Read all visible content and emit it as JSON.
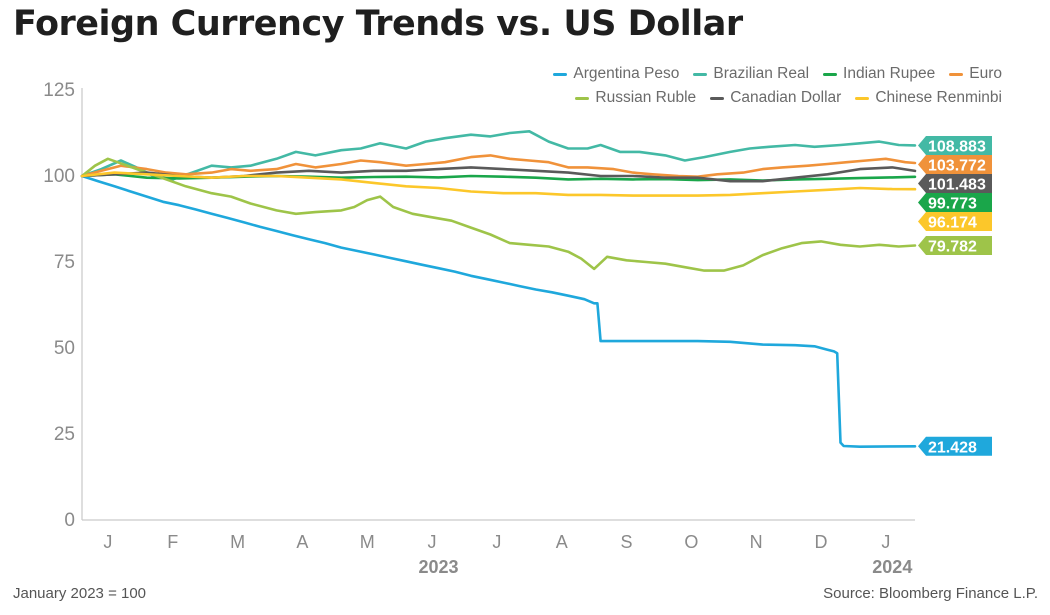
{
  "title": "Foreign Currency Trends vs. US Dollar",
  "footnote": "January 2023 = 100",
  "source": "Source: Bloomberg Finance L.P.",
  "chart_data": {
    "type": "line",
    "ylim": [
      0,
      125
    ],
    "yticks": [
      0,
      25,
      50,
      75,
      100,
      125
    ],
    "x_unit": "month index (0 = start of Jan 2023)",
    "xlim": [
      0,
      12.85
    ],
    "month_labels": [
      "J",
      "F",
      "M",
      "A",
      "M",
      "J",
      "J",
      "A",
      "S",
      "O",
      "N",
      "D",
      "J"
    ],
    "year_labels": [
      {
        "label": "2023",
        "month": 5.5
      },
      {
        "label": "2024",
        "month": 12.5
      }
    ],
    "grid": false,
    "legend_position": "top-right",
    "series": [
      {
        "name": "Argentina Peso",
        "color": "#1fa8dc",
        "end_label": "21.428",
        "points": [
          [
            0,
            100
          ],
          [
            0.25,
            98.5
          ],
          [
            0.5,
            97
          ],
          [
            0.75,
            95.5
          ],
          [
            1,
            94
          ],
          [
            1.25,
            92.5
          ],
          [
            1.5,
            91.5
          ],
          [
            1.75,
            90.3
          ],
          [
            2,
            89
          ],
          [
            2.25,
            87.8
          ],
          [
            2.5,
            86.5
          ],
          [
            2.75,
            85.2
          ],
          [
            3,
            84
          ],
          [
            3.25,
            82.8
          ],
          [
            3.5,
            81.6
          ],
          [
            3.75,
            80.5
          ],
          [
            4,
            79.2
          ],
          [
            4.25,
            78.2
          ],
          [
            4.5,
            77.2
          ],
          [
            4.75,
            76.2
          ],
          [
            5,
            75.2
          ],
          [
            5.25,
            74.2
          ],
          [
            5.5,
            73.2
          ],
          [
            5.75,
            72.2
          ],
          [
            6,
            71
          ],
          [
            6.25,
            70
          ],
          [
            6.5,
            69
          ],
          [
            6.75,
            68
          ],
          [
            7,
            67
          ],
          [
            7.25,
            66.2
          ],
          [
            7.5,
            65.2
          ],
          [
            7.75,
            64.2
          ],
          [
            7.9,
            63
          ],
          [
            7.95,
            63
          ],
          [
            8.0,
            52
          ],
          [
            8.5,
            52
          ],
          [
            9,
            52
          ],
          [
            9.5,
            52
          ],
          [
            10,
            51.8
          ],
          [
            10.5,
            51
          ],
          [
            11,
            50.8
          ],
          [
            11.3,
            50.5
          ],
          [
            11.5,
            49.5
          ],
          [
            11.6,
            49
          ],
          [
            11.65,
            48.5
          ],
          [
            11.7,
            22.5
          ],
          [
            11.75,
            21.5
          ],
          [
            12,
            21.3
          ],
          [
            12.5,
            21.4
          ],
          [
            12.85,
            21.428
          ]
        ]
      },
      {
        "name": "Brazilian Real",
        "color": "#43b9a5",
        "end_label": "108.883",
        "points": [
          [
            0,
            100
          ],
          [
            0.3,
            102
          ],
          [
            0.6,
            104.5
          ],
          [
            0.9,
            102
          ],
          [
            1.1,
            100
          ],
          [
            1.4,
            99
          ],
          [
            1.7,
            101
          ],
          [
            2,
            103
          ],
          [
            2.3,
            102.5
          ],
          [
            2.6,
            103
          ],
          [
            3,
            105
          ],
          [
            3.3,
            107
          ],
          [
            3.6,
            106
          ],
          [
            4,
            107.5
          ],
          [
            4.3,
            108
          ],
          [
            4.6,
            109.5
          ],
          [
            5,
            108
          ],
          [
            5.3,
            110
          ],
          [
            5.6,
            111
          ],
          [
            6,
            112
          ],
          [
            6.3,
            111.5
          ],
          [
            6.6,
            112.5
          ],
          [
            6.9,
            113
          ],
          [
            7.2,
            110
          ],
          [
            7.5,
            108
          ],
          [
            7.8,
            108
          ],
          [
            8,
            109
          ],
          [
            8.3,
            107
          ],
          [
            8.6,
            107
          ],
          [
            9,
            106
          ],
          [
            9.3,
            104.5
          ],
          [
            9.6,
            105.5
          ],
          [
            10,
            107
          ],
          [
            10.3,
            108
          ],
          [
            10.6,
            108.5
          ],
          [
            11,
            109
          ],
          [
            11.3,
            108.5
          ],
          [
            11.7,
            109
          ],
          [
            12,
            109.5
          ],
          [
            12.3,
            110
          ],
          [
            12.6,
            109
          ],
          [
            12.85,
            108.883
          ]
        ]
      },
      {
        "name": "Indian Rupee",
        "color": "#1aa64a",
        "end_label": "99.773",
        "points": [
          [
            0,
            100
          ],
          [
            0.5,
            100.5
          ],
          [
            1,
            99.5
          ],
          [
            1.5,
            99.3
          ],
          [
            2,
            99.5
          ],
          [
            2.5,
            99.8
          ],
          [
            3,
            100
          ],
          [
            3.5,
            99.8
          ],
          [
            4,
            99.5
          ],
          [
            4.5,
            99.7
          ],
          [
            5,
            99.8
          ],
          [
            5.5,
            99.6
          ],
          [
            6,
            100
          ],
          [
            6.5,
            99.8
          ],
          [
            7,
            99.5
          ],
          [
            7.5,
            99
          ],
          [
            8,
            99.2
          ],
          [
            8.5,
            99
          ],
          [
            9,
            99.1
          ],
          [
            9.5,
            98.8
          ],
          [
            10,
            99
          ],
          [
            10.5,
            98.7
          ],
          [
            11,
            99
          ],
          [
            11.5,
            99.2
          ],
          [
            12,
            99.4
          ],
          [
            12.5,
            99.6
          ],
          [
            12.85,
            99.773
          ]
        ]
      },
      {
        "name": "Euro",
        "color": "#f0923a",
        "end_label": "103.772",
        "points": [
          [
            0,
            100
          ],
          [
            0.3,
            101.5
          ],
          [
            0.6,
            103
          ],
          [
            1,
            102
          ],
          [
            1.3,
            101
          ],
          [
            1.6,
            100.5
          ],
          [
            2,
            101
          ],
          [
            2.3,
            102
          ],
          [
            2.6,
            101.5
          ],
          [
            3,
            102
          ],
          [
            3.3,
            103.5
          ],
          [
            3.6,
            102.5
          ],
          [
            4,
            103.5
          ],
          [
            4.3,
            104.5
          ],
          [
            4.6,
            104
          ],
          [
            5,
            103
          ],
          [
            5.3,
            103.5
          ],
          [
            5.6,
            104
          ],
          [
            6,
            105.5
          ],
          [
            6.3,
            106
          ],
          [
            6.6,
            105
          ],
          [
            6.9,
            104.5
          ],
          [
            7.2,
            104
          ],
          [
            7.5,
            102.5
          ],
          [
            7.8,
            102.5
          ],
          [
            8.2,
            102
          ],
          [
            8.5,
            101
          ],
          [
            8.8,
            100.5
          ],
          [
            9.2,
            100
          ],
          [
            9.5,
            99.8
          ],
          [
            9.8,
            100.5
          ],
          [
            10.2,
            101
          ],
          [
            10.5,
            102
          ],
          [
            10.8,
            102.5
          ],
          [
            11.2,
            103
          ],
          [
            11.5,
            103.5
          ],
          [
            11.8,
            104
          ],
          [
            12.1,
            104.5
          ],
          [
            12.4,
            105
          ],
          [
            12.7,
            104
          ],
          [
            12.85,
            103.772
          ]
        ]
      },
      {
        "name": "Russian Ruble",
        "color": "#9ec449",
        "end_label": "79.782",
        "points": [
          [
            0,
            100
          ],
          [
            0.2,
            103
          ],
          [
            0.4,
            105
          ],
          [
            0.7,
            103
          ],
          [
            1,
            101
          ],
          [
            1.3,
            99
          ],
          [
            1.6,
            97
          ],
          [
            2,
            95
          ],
          [
            2.3,
            94
          ],
          [
            2.6,
            92
          ],
          [
            3,
            90
          ],
          [
            3.3,
            89
          ],
          [
            3.6,
            89.5
          ],
          [
            4,
            90
          ],
          [
            4.2,
            91
          ],
          [
            4.4,
            93
          ],
          [
            4.6,
            94
          ],
          [
            4.8,
            91
          ],
          [
            5.1,
            89
          ],
          [
            5.4,
            88
          ],
          [
            5.7,
            87
          ],
          [
            6,
            85
          ],
          [
            6.3,
            83
          ],
          [
            6.6,
            80.5
          ],
          [
            6.9,
            80
          ],
          [
            7.2,
            79.5
          ],
          [
            7.5,
            78
          ],
          [
            7.7,
            76
          ],
          [
            7.9,
            73
          ],
          [
            8.1,
            76.5
          ],
          [
            8.4,
            75.5
          ],
          [
            8.7,
            75
          ],
          [
            9,
            74.5
          ],
          [
            9.3,
            73.5
          ],
          [
            9.6,
            72.5
          ],
          [
            9.9,
            72.5
          ],
          [
            10.2,
            74
          ],
          [
            10.5,
            77
          ],
          [
            10.8,
            79
          ],
          [
            11.1,
            80.5
          ],
          [
            11.4,
            81
          ],
          [
            11.7,
            80
          ],
          [
            12,
            79.5
          ],
          [
            12.3,
            80
          ],
          [
            12.6,
            79.5
          ],
          [
            12.85,
            79.782
          ]
        ]
      },
      {
        "name": "Canadian Dollar",
        "color": "#5a5a5a",
        "end_label": "101.483",
        "points": [
          [
            0,
            100
          ],
          [
            0.5,
            100.5
          ],
          [
            1,
            101
          ],
          [
            1.5,
            100
          ],
          [
            2,
            99.5
          ],
          [
            2.5,
            100
          ],
          [
            3,
            101
          ],
          [
            3.5,
            101.5
          ],
          [
            4,
            101
          ],
          [
            4.5,
            101.5
          ],
          [
            5,
            101.5
          ],
          [
            5.5,
            102
          ],
          [
            6,
            102.5
          ],
          [
            6.5,
            102
          ],
          [
            7,
            101.5
          ],
          [
            7.5,
            101
          ],
          [
            8,
            100
          ],
          [
            8.5,
            100
          ],
          [
            9,
            99.5
          ],
          [
            9.5,
            99.5
          ],
          [
            10,
            98.5
          ],
          [
            10.5,
            98.5
          ],
          [
            11,
            99.5
          ],
          [
            11.5,
            100.5
          ],
          [
            12,
            102
          ],
          [
            12.5,
            102.5
          ],
          [
            12.85,
            101.483
          ]
        ]
      },
      {
        "name": "Chinese Renminbi",
        "color": "#fcc72a",
        "end_label": "96.174",
        "points": [
          [
            0,
            100
          ],
          [
            0.5,
            101
          ],
          [
            1,
            100.5
          ],
          [
            1.5,
            100
          ],
          [
            2,
            99.5
          ],
          [
            2.5,
            100
          ],
          [
            3,
            100
          ],
          [
            3.5,
            99.5
          ],
          [
            4,
            99
          ],
          [
            4.5,
            98
          ],
          [
            5,
            97
          ],
          [
            5.5,
            96.5
          ],
          [
            6,
            95.5
          ],
          [
            6.5,
            95
          ],
          [
            7,
            95
          ],
          [
            7.5,
            94.5
          ],
          [
            8,
            94.5
          ],
          [
            8.5,
            94.3
          ],
          [
            9,
            94.3
          ],
          [
            9.5,
            94.3
          ],
          [
            10,
            94.5
          ],
          [
            10.5,
            95
          ],
          [
            11,
            95.5
          ],
          [
            11.5,
            96
          ],
          [
            12,
            96.5
          ],
          [
            12.5,
            96.2
          ],
          [
            12.85,
            96.174
          ]
        ]
      }
    ],
    "end_label_order": [
      "Brazilian Real",
      "Euro",
      "Canadian Dollar",
      "Indian Rupee",
      "Chinese Renminbi",
      "Russian Ruble",
      "Argentina Peso"
    ]
  }
}
